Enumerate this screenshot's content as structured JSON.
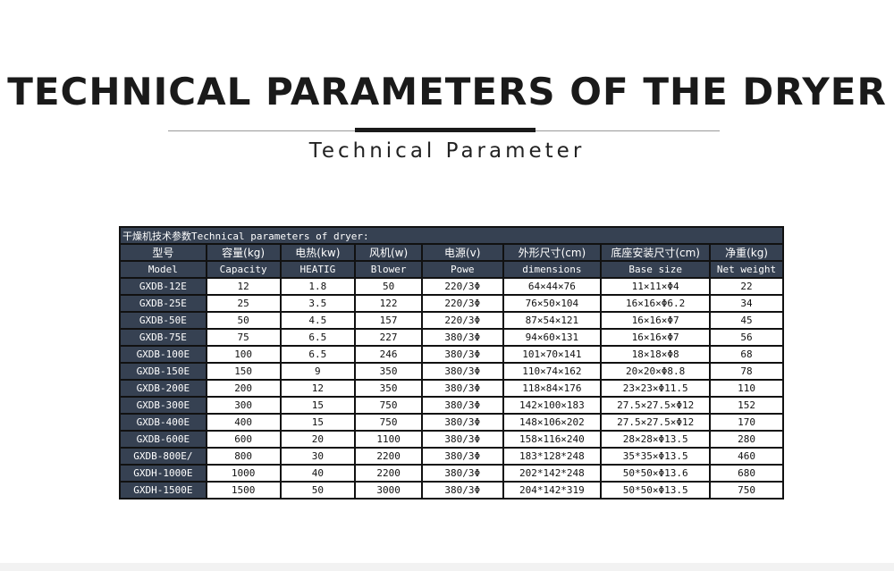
{
  "title": "TECHNICAL PARAMETERS OF THE DRYER",
  "subtitle": "Technical Parameter",
  "table": {
    "caption": "干燥机技术参数Technical parameters of dryer:",
    "headers_cn": [
      "型号",
      "容量(kg)",
      "电热(kw)",
      "风机(w)",
      "电源(v)",
      "外形尺寸(cm)",
      "底座安装尺寸(cm)",
      "净重(kg)"
    ],
    "headers_en": [
      "Model",
      "Capacity",
      "HEATIG",
      "Blower",
      "Powe",
      "dimensions",
      "Base size",
      "Net weight"
    ],
    "rows": [
      [
        "GXDB-12E",
        "12",
        "1.8",
        "50",
        "220/3Φ",
        "64×44×76",
        "11×11×Φ4",
        "22"
      ],
      [
        "GXDB-25E",
        "25",
        "3.5",
        "122",
        "220/3Φ",
        "76×50×104",
        "16×16×Φ6.2",
        "34"
      ],
      [
        "GXDB-50E",
        "50",
        "4.5",
        "157",
        "220/3Φ",
        "87×54×121",
        "16×16×Φ7",
        "45"
      ],
      [
        "GXDB-75E",
        "75",
        "6.5",
        "227",
        "380/3Φ",
        "94×60×131",
        "16×16×Φ7",
        "56"
      ],
      [
        "GXDB-100E",
        "100",
        "6.5",
        "246",
        "380/3Φ",
        "101×70×141",
        "18×18×Φ8",
        "68"
      ],
      [
        "GXDB-150E",
        "150",
        "9",
        "350",
        "380/3Φ",
        "110×74×162",
        "20×20×Φ8.8",
        "78"
      ],
      [
        "GXDB-200E",
        "200",
        "12",
        "350",
        "380/3Φ",
        "118×84×176",
        "23×23×Φ11.5",
        "110"
      ],
      [
        "GXDB-300E",
        "300",
        "15",
        "750",
        "380/3Φ",
        "142×100×183",
        "27.5×27.5×Φ12",
        "152"
      ],
      [
        "GXDB-400E",
        "400",
        "15",
        "750",
        "380/3Φ",
        "148×106×202",
        "27.5×27.5×Φ12",
        "170"
      ],
      [
        "GXDB-600E",
        "600",
        "20",
        "1100",
        "380/3Φ",
        "158×116×240",
        "28×28×Φ13.5",
        "280"
      ],
      [
        "GXDB-800E/",
        "800",
        "30",
        "2200",
        "380/3Φ",
        "183*128*248",
        "35*35×Φ13.5",
        "460"
      ],
      [
        "GXDH-1000E",
        "1000",
        "40",
        "2200",
        "380/3Φ",
        "202*142*248",
        "50*50×Φ13.6",
        "680"
      ],
      [
        "GXDH-1500E",
        "1500",
        "50",
        "3000",
        "380/3Φ",
        "204*142*319",
        "50*50×Φ13.5",
        "750"
      ]
    ]
  },
  "colors": {
    "header_bg": "#364152",
    "text": "#1a1a1a"
  }
}
